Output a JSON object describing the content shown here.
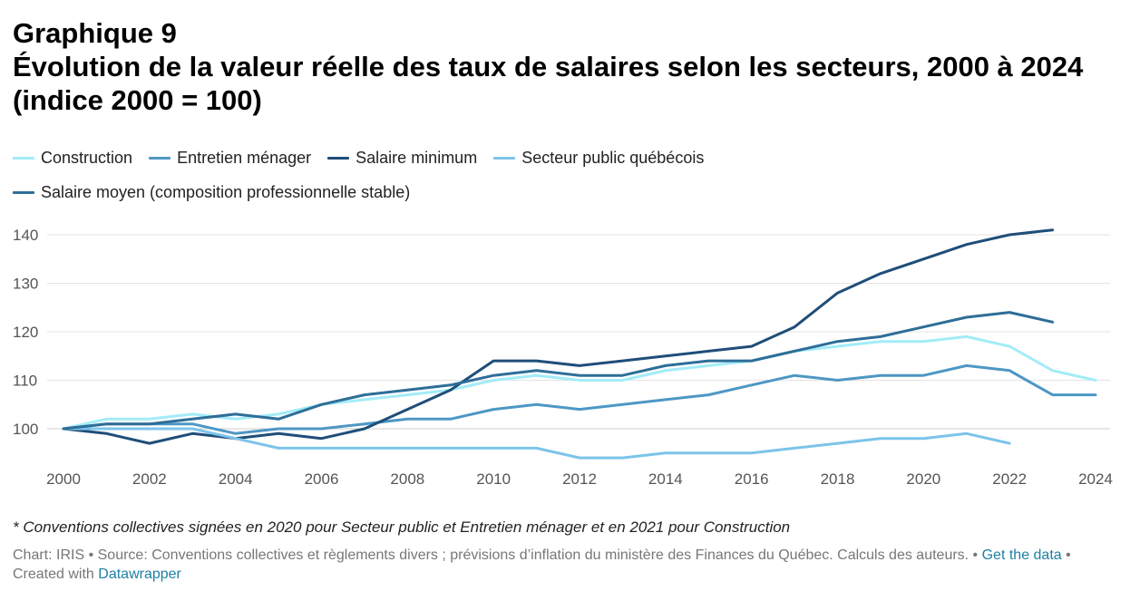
{
  "title_line1": "Graphique 9",
  "title_line2": "Évolution de la valeur réelle des taux de salaires selon les secteurs, 2000 à 2024 (indice 2000 = 100)",
  "footnote": "* Conventions collectives signées en 2020 pour Secteur public et Entretien ménager et en 2021 pour Construction",
  "source": {
    "prefix": "Chart: IRIS • Source: Conventions collectives et règlements divers ; prévisions d’inflation du ministère des Finances du Québec. Calculs des auteurs. • ",
    "get_data": "Get the data",
    "middle": " • Created with ",
    "datawrapper": "Datawrapper"
  },
  "chart_data": {
    "type": "line",
    "x_ticks": [
      2000,
      2002,
      2004,
      2006,
      2008,
      2010,
      2012,
      2014,
      2016,
      2018,
      2020,
      2022,
      2024
    ],
    "y_ticks": [
      100,
      110,
      120,
      130,
      140
    ],
    "xlim": [
      2000,
      2024
    ],
    "ylim": [
      93,
      143
    ],
    "grid": "horizontal",
    "legend_position": "top-left",
    "series": [
      {
        "name": "Construction",
        "color": "#a3ecf8",
        "x": [
          2000,
          2001,
          2002,
          2003,
          2004,
          2005,
          2006,
          2007,
          2008,
          2009,
          2010,
          2011,
          2012,
          2013,
          2014,
          2015,
          2016,
          2017,
          2018,
          2019,
          2020,
          2021,
          2022,
          2023,
          2024
        ],
        "y": [
          100,
          102,
          102,
          103,
          102,
          103,
          105,
          106,
          107,
          108,
          110,
          111,
          110,
          110,
          112,
          113,
          114,
          116,
          117,
          118,
          118,
          119,
          117,
          112,
          110
        ]
      },
      {
        "name": "Entretien ménager",
        "color": "#4d97c4",
        "x": [
          2000,
          2001,
          2002,
          2003,
          2004,
          2005,
          2006,
          2007,
          2008,
          2009,
          2010,
          2011,
          2012,
          2013,
          2014,
          2015,
          2016,
          2017,
          2018,
          2019,
          2020,
          2021,
          2022,
          2023,
          2024
        ],
        "y": [
          100,
          101,
          101,
          101,
          99,
          100,
          100,
          101,
          102,
          102,
          104,
          105,
          104,
          105,
          106,
          107,
          109,
          111,
          110,
          111,
          111,
          113,
          112,
          107,
          107
        ]
      },
      {
        "name": "Salaire minimum",
        "color": "#1f4e79",
        "x": [
          2000,
          2001,
          2002,
          2003,
          2004,
          2005,
          2006,
          2007,
          2008,
          2009,
          2010,
          2011,
          2012,
          2013,
          2014,
          2015,
          2016,
          2017,
          2018,
          2019,
          2020,
          2021,
          2022,
          2023
        ],
        "y": [
          100,
          99,
          97,
          99,
          98,
          99,
          98,
          100,
          104,
          108,
          114,
          114,
          113,
          114,
          115,
          116,
          117,
          121,
          128,
          132,
          135,
          138,
          140,
          141
        ]
      },
      {
        "name": "Secteur public québécois",
        "color": "#7cc4ea",
        "x": [
          2000,
          2001,
          2002,
          2003,
          2004,
          2005,
          2006,
          2007,
          2008,
          2009,
          2010,
          2011,
          2012,
          2013,
          2014,
          2015,
          2016,
          2017,
          2018,
          2019,
          2020,
          2021,
          2022
        ],
        "y": [
          100,
          100,
          100,
          100,
          98,
          96,
          96,
          96,
          96,
          96,
          96,
          96,
          94,
          94,
          95,
          95,
          95,
          96,
          97,
          98,
          98,
          99,
          97
        ]
      },
      {
        "name": "Salaire moyen (composition professionnelle stable)",
        "color": "#2e6e98",
        "x": [
          2000,
          2001,
          2002,
          2003,
          2004,
          2005,
          2006,
          2007,
          2008,
          2009,
          2010,
          2011,
          2012,
          2013,
          2014,
          2015,
          2016,
          2017,
          2018,
          2019,
          2020,
          2021,
          2022,
          2023
        ],
        "y": [
          100,
          101,
          101,
          102,
          103,
          102,
          105,
          107,
          108,
          109,
          111,
          112,
          111,
          111,
          113,
          114,
          114,
          116,
          118,
          119,
          121,
          123,
          124,
          122
        ]
      }
    ]
  }
}
